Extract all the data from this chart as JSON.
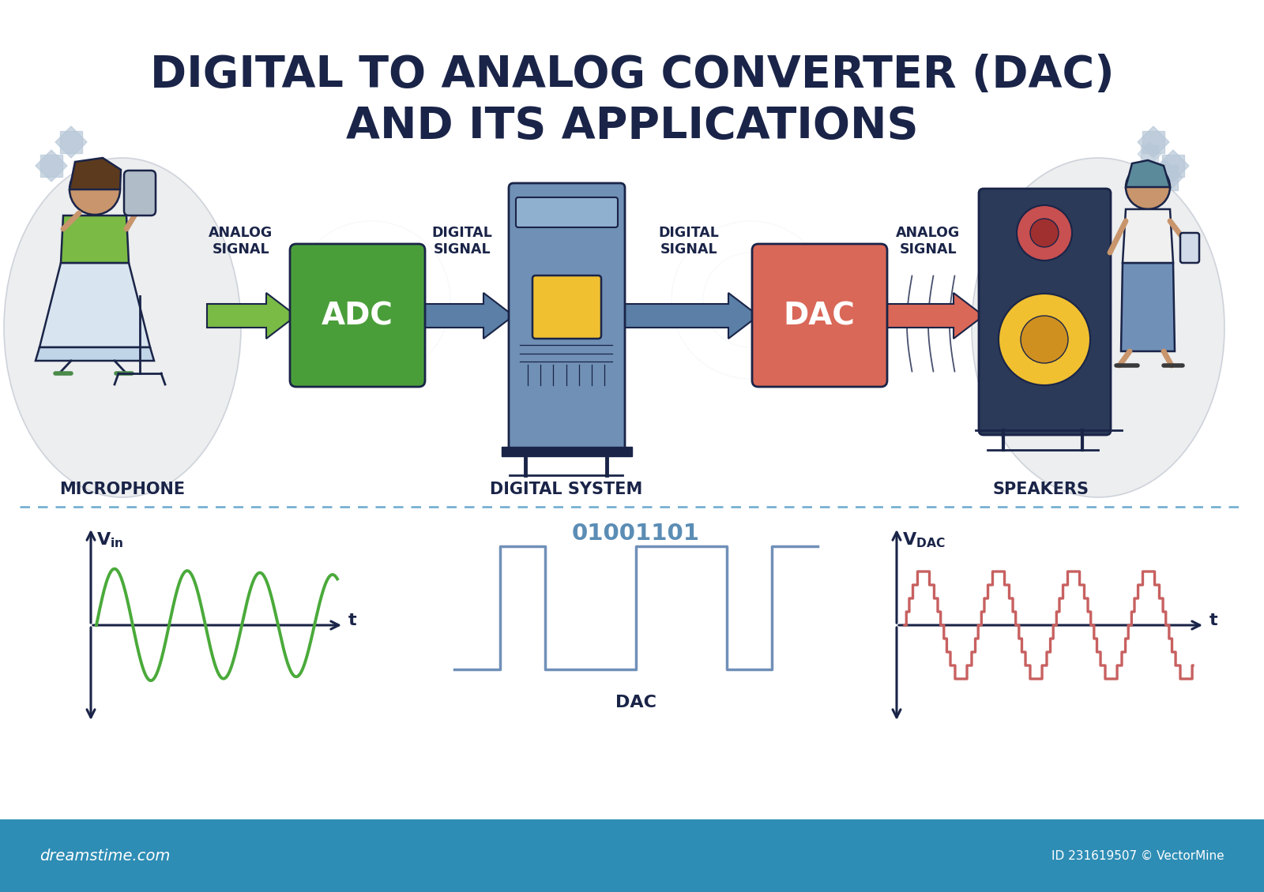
{
  "title_line1": "DIGITAL TO ANALOG CONVERTER (DAC)",
  "title_line2": "AND ITS APPLICATIONS",
  "title_color": "#1a2448",
  "bg_color": "#ffffff",
  "label_microphone": "MICROPHONE",
  "label_digital_system": "DIGITAL SYSTEM",
  "label_speakers": "SPEAKERS",
  "label_adc": "ADC",
  "label_dac": "DAC",
  "label_analog_signal1": "ANALOG\nSIGNAL",
  "label_digital_signal1": "DIGITAL\nSIGNAL",
  "label_digital_signal2": "DIGITAL\nSIGNAL",
  "label_analog_signal2": "ANALOG\nSIGNAL",
  "label_dac_bottom": "DAC",
  "label_binary": "01001101",
  "adc_color": "#4a9e3a",
  "dac_color": "#d96858",
  "arrow1_color": "#7abb45",
  "arrow2_color": "#5b7fa6",
  "arrow3_color": "#5b7fa6",
  "arrow4_color": "#d96858",
  "sine_color": "#4aaa3a",
  "dac_wave_color": "#c86060",
  "square_wave_color": "#7090b8",
  "binary_color": "#5b8db5",
  "axis_color": "#1a2448",
  "dreamstime_bar": "#2e8db5",
  "ellipse_bg": "#e8eaec",
  "ellipse_edge": "#c5cad4",
  "ds_body_color": "#7090b5",
  "ds_top_color": "#90b0d0",
  "chip_color": "#f0c030"
}
